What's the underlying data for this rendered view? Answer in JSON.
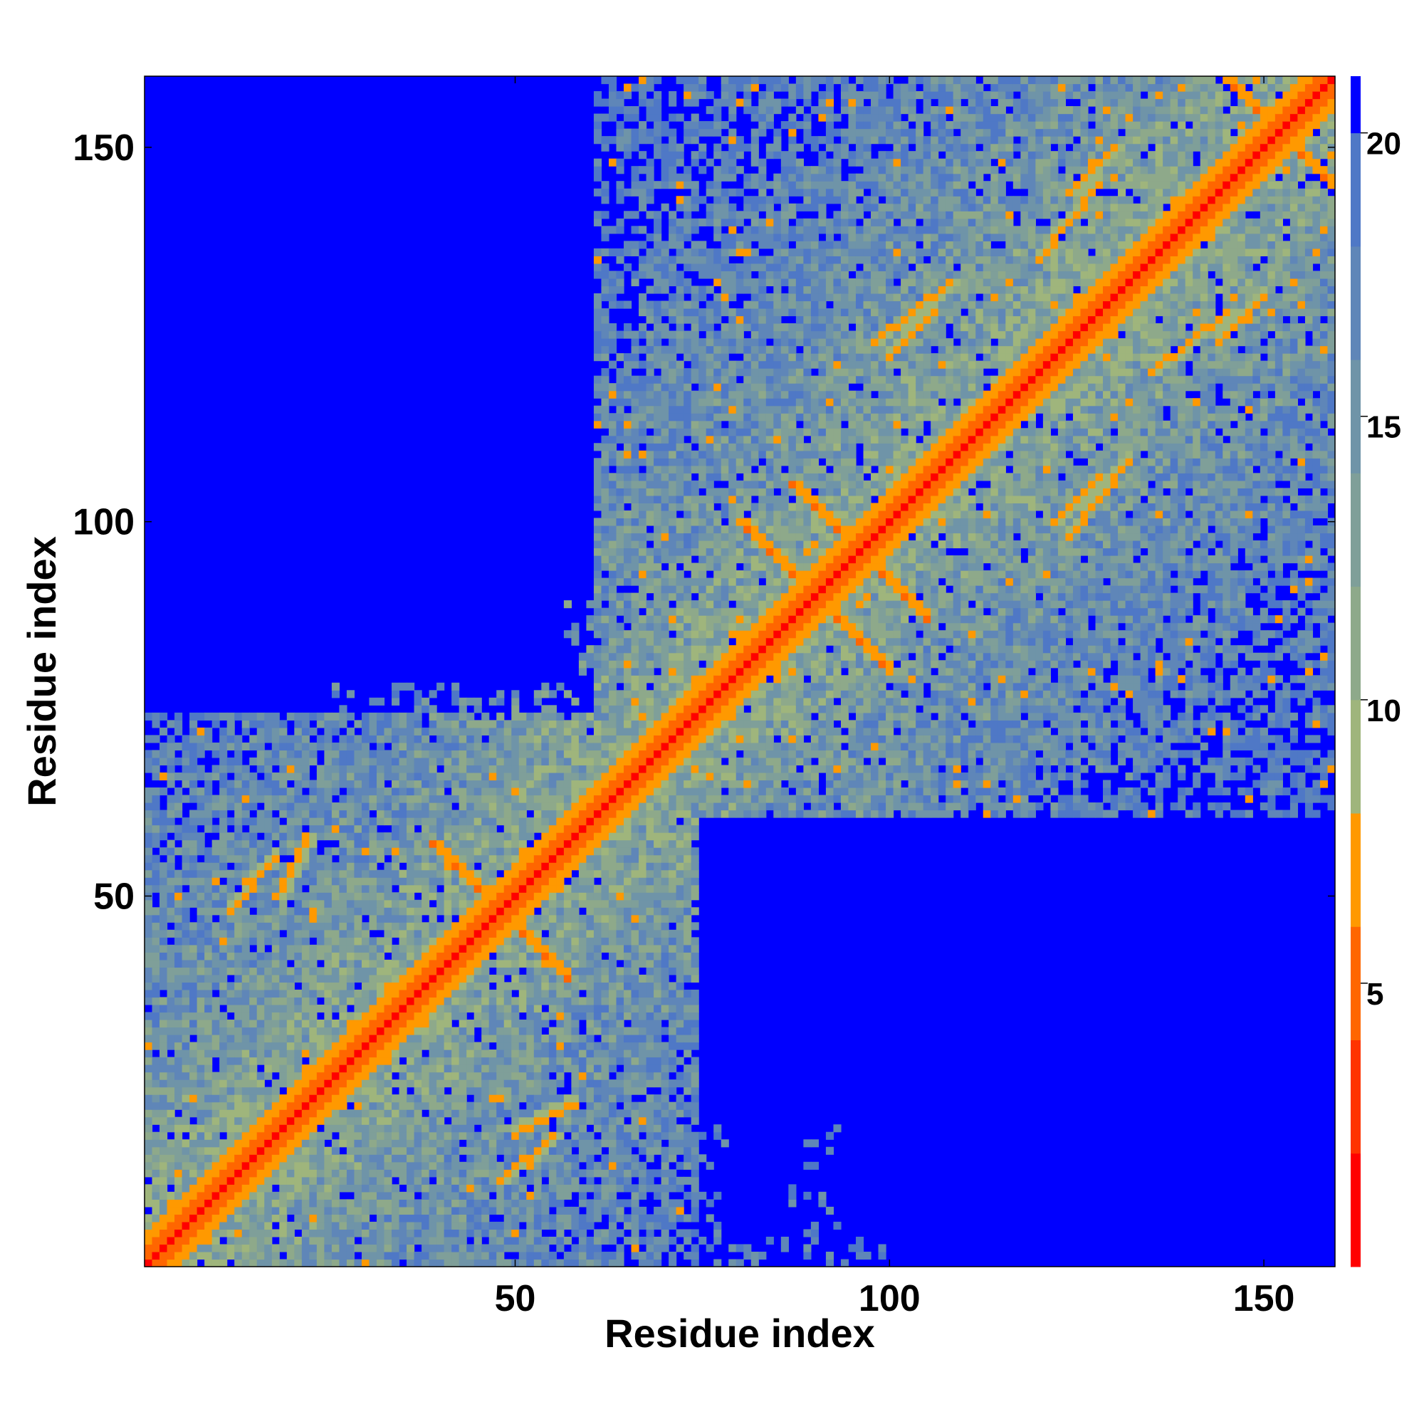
{
  "chart_data": {
    "type": "heatmap",
    "title": "",
    "xlabel": "Residue index",
    "ylabel": "Residue index",
    "n_residues": 159,
    "xlim": [
      1,
      159
    ],
    "ylim": [
      1,
      159
    ],
    "x_ticks": [
      50,
      100,
      150
    ],
    "y_ticks": [
      50,
      100,
      150
    ],
    "x_tick_labels": [
      "50",
      "100",
      "150"
    ],
    "y_tick_labels": [
      "50",
      "100",
      "150"
    ],
    "colorbar": {
      "min": 0,
      "max": 20,
      "ticks": [
        5,
        10,
        15,
        20
      ],
      "tick_labels": [
        "5",
        "10",
        "15",
        "20"
      ],
      "palette": [
        {
          "upto": 2,
          "color": "#ff0000"
        },
        {
          "upto": 4,
          "color": "#ff3300"
        },
        {
          "upto": 6,
          "color": "#ff6600"
        },
        {
          "upto": 8,
          "color": "#ff9900"
        },
        {
          "upto": 10,
          "color": "#9fb57c"
        },
        {
          "upto": 12,
          "color": "#8ea98a"
        },
        {
          "upto": 14,
          "color": "#7f9f99"
        },
        {
          "upto": 16,
          "color": "#6f94a8"
        },
        {
          "upto": 18,
          "color": "#5f86b8"
        },
        {
          "upto": 20,
          "color": "#4f78c6"
        },
        {
          "upto": 999,
          "color": "#0000ff"
        }
      ],
      "above_max_color": "#0000ff"
    },
    "secondary_contacts": [
      {
        "type": "anti",
        "center": [
          48,
          48
        ],
        "half_length": 9
      },
      {
        "type": "anti",
        "center": [
          90,
          90
        ],
        "half_length": 10
      },
      {
        "type": "anti",
        "center": [
          96,
          96
        ],
        "half_length": 9
      },
      {
        "type": "anti",
        "center": [
          152,
          152
        ],
        "half_length": 7
      },
      {
        "type": "parallel",
        "start": [
          18,
          50
        ],
        "end": [
          22,
          58
        ]
      },
      {
        "type": "parallel",
        "start": [
          122,
          100
        ],
        "end": [
          128,
          106
        ]
      },
      {
        "type": "parallel",
        "start": [
          98,
          124
        ],
        "end": [
          108,
          132
        ]
      },
      {
        "type": "parallel",
        "start": [
          124,
          144
        ],
        "end": [
          130,
          150
        ]
      },
      {
        "type": "parallel",
        "start": [
          135,
          120
        ],
        "end": [
          145,
          128
        ]
      },
      {
        "type": "parallel",
        "start": [
          48,
          12
        ],
        "end": [
          55,
          18
        ]
      }
    ],
    "blue_regions": [
      {
        "x": [
          1,
          60
        ],
        "y": [
          100,
          159
        ]
      },
      {
        "x": [
          20,
          60
        ],
        "y": [
          75,
          100
        ]
      },
      {
        "x": [
          90,
          159
        ],
        "y": [
          1,
          60
        ]
      },
      {
        "x": [
          75,
          90
        ],
        "y": [
          1,
          25
        ]
      }
    ]
  }
}
